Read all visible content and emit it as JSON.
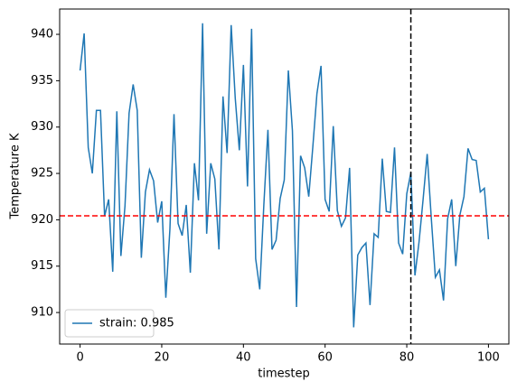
{
  "chart_data": {
    "type": "line",
    "xlabel": "timestep",
    "ylabel": "Temperature K",
    "x": [
      0,
      1,
      2,
      3,
      4,
      5,
      6,
      7,
      8,
      9,
      10,
      11,
      12,
      13,
      14,
      15,
      16,
      17,
      18,
      19,
      20,
      21,
      22,
      23,
      24,
      25,
      26,
      27,
      28,
      29,
      30,
      31,
      32,
      33,
      34,
      35,
      36,
      37,
      38,
      39,
      40,
      41,
      42,
      43,
      44,
      45,
      46,
      47,
      48,
      49,
      50,
      51,
      52,
      53,
      54,
      55,
      56,
      57,
      58,
      59,
      60,
      61,
      62,
      63,
      64,
      65,
      66,
      67,
      68,
      69,
      70,
      71,
      72,
      73,
      74,
      75,
      76,
      77,
      78,
      79,
      80,
      81,
      82,
      83,
      84,
      85,
      86,
      87,
      88,
      89,
      90,
      91,
      92,
      93,
      94,
      95,
      96,
      97,
      98,
      99,
      100
    ],
    "series": [
      {
        "name": "strain: 0.985",
        "color": "#1f77b4",
        "values": [
          936.1,
          940.1,
          927.8,
          925,
          931.8,
          931.8,
          920.4,
          922.2,
          914.4,
          931.7,
          916.1,
          921.5,
          931.5,
          934.6,
          931.8,
          915.9,
          923,
          925.4,
          924.2,
          919.7,
          922,
          911.6,
          919,
          931.4,
          919.6,
          918.3,
          921.6,
          914.3,
          926.1,
          922.1,
          941.2,
          918.5,
          926.1,
          924.4,
          916.8,
          933.3,
          927.2,
          941,
          933.1,
          927.5,
          936.7,
          923.6,
          940.6,
          915.8,
          912.5,
          921.6,
          929.7,
          916.8,
          917.8,
          922.3,
          924.3,
          936.1,
          929.6,
          910.6,
          926.9,
          925.6,
          922.5,
          927.9,
          933.6,
          936.6,
          922.2,
          920.9,
          930.1,
          921,
          919.3,
          920.2,
          925.6,
          908.4,
          916.2,
          917,
          917.5,
          910.8,
          918.5,
          918.1,
          926.6,
          920.9,
          920.8,
          927.8,
          917.5,
          916.3,
          922.8,
          925.1,
          914,
          917.6,
          922.2,
          927.1,
          920.2,
          913.8,
          914.6,
          911.3,
          920.1,
          922.2,
          915,
          920.5,
          922.5,
          927.7,
          926.5,
          926.4,
          923,
          923.4,
          917.9
        ]
      }
    ],
    "reference_lines": [
      {
        "axis": "y",
        "value": 920.43,
        "color": "#ff0000"
      },
      {
        "axis": "x",
        "value": 81,
        "color": "#000000"
      }
    ],
    "xlim": [
      -5,
      105
    ],
    "xticks": [
      0,
      20,
      40,
      60,
      80,
      100
    ],
    "ylim": [
      906.6,
      942.73
    ],
    "yticks": [
      910,
      915,
      920,
      925,
      930,
      935,
      940
    ],
    "legend": "lower left"
  }
}
